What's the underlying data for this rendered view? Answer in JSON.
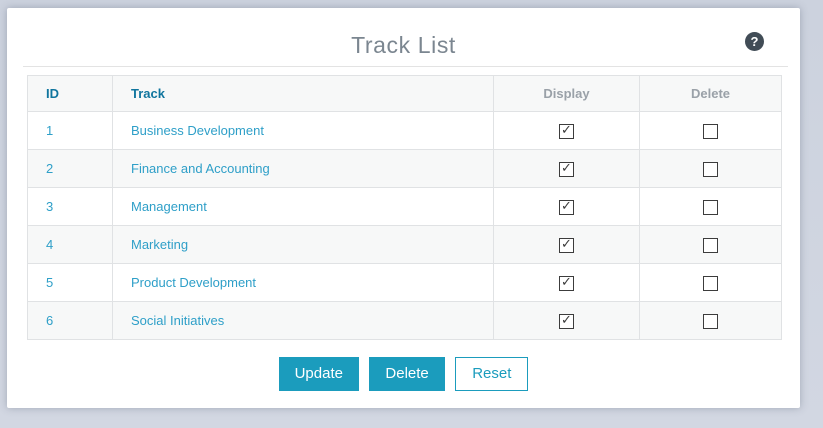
{
  "page": {
    "title": "Track List"
  },
  "icons": {
    "help": "question-mark-icon"
  },
  "table": {
    "headers": {
      "id": "ID",
      "track": "Track",
      "display": "Display",
      "delete": "Delete"
    },
    "rows": [
      {
        "id": "1",
        "track": "Business Development",
        "display": true,
        "delete": false
      },
      {
        "id": "2",
        "track": "Finance and Accounting",
        "display": true,
        "delete": false
      },
      {
        "id": "3",
        "track": "Management",
        "display": true,
        "delete": false
      },
      {
        "id": "4",
        "track": "Marketing",
        "display": true,
        "delete": false
      },
      {
        "id": "5",
        "track": "Product Development",
        "display": true,
        "delete": false
      },
      {
        "id": "6",
        "track": "Social Initiatives",
        "display": true,
        "delete": false
      }
    ]
  },
  "buttons": {
    "update": "Update",
    "delete": "Delete",
    "reset": "Reset"
  },
  "help_glyph": "?",
  "colors": {
    "accent": "#1b9cbd",
    "header_link": "#10759e",
    "row_link": "#2e9fc8",
    "muted_header": "#9aa1a8",
    "title": "#7b8690",
    "page_bg": "#d2d7e2"
  }
}
